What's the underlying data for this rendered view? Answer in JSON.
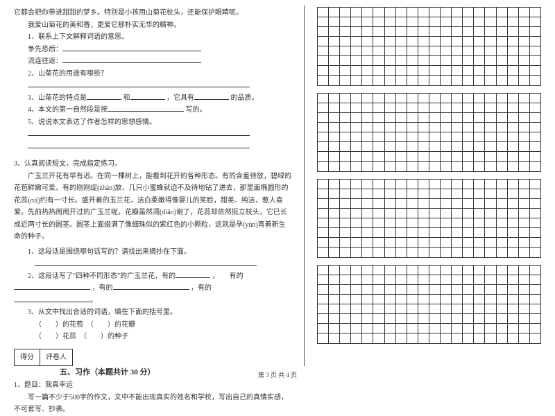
{
  "left": {
    "p1": "它都会把你带进甜甜的梦乡。特别是小孩用山菊花枕头，还能保护眼睛呢。",
    "p2": "我爱山菊花的美和香，更爱它那朴实无华的精神。",
    "q1": "1、联系上下文解释词语的意思。",
    "q1a": "争先恐后：",
    "q1b": "流连往返：",
    "q2": "2、山菊花的用途有哪些？",
    "q3a": "3、山菊花的特点是",
    "q3b": "和",
    "q3c": "，它具有",
    "q3d": "的品质。",
    "q4a": "4、本文的第一自然段是按",
    "q4b": "写的。",
    "q5": "5、说说本文表达了作者怎样的思想感情。",
    "s3title": "3、认真阅读短文，完成指定练习。",
    "s3p1": "广玉兰开花有早有迟。在同一棵树上，能看到花开的各种形态。有的含羞待放，碧绿的花苞鲜嫩可爱。有的刚刚绽(zhàn)放，几只小蜜蜂就迫不及待地钻了进去，那里面椭圆形的花蕊(ruǐ)约有一寸长。盛开着的玉兰花，洁白柔嫩得像婴儿的笑脸，甜美、纯洁，惹人喜爱。先前热热闹闹开过的广玉兰呢，花瓣虽然凋(diāo)谢了，花蕊却依然挺立枝头，它已长成近两寸长的圆茎。圆茎上面缀满了像细珠似的紫红色的小颗粒，这就是孕(yùn)育着新生命的种子。",
    "s3q1": "1、这段话是围绕哪句话写的？请找出来摘抄在下面。",
    "s3q2a": "2、这段话写了\"四种不同形态\"的广玉兰花，有的",
    "s3q2b": "，　　有的",
    "s3q2c": "，有的",
    "s3q2d": "，有的",
    "s3q2e": "。",
    "s3q3": "3、从文中找出合适的词语，填在下面的括号里。",
    "s3q3a": "（　　）的花苞　（　　）的花瓣",
    "s3q3b": "（　　）花蕊　（　　）的种子",
    "score1": "得分",
    "score2": "评卷人",
    "sec5": "五、习作（本题共计 30 分）",
    "t1": "1、题目：我真幸运",
    "t2": "写一篇不少于500字的作文，文中不能出现真实的姓名和学校，写出自己的真情实感，不可套写、抄袭。"
  },
  "grid": {
    "cols": 20,
    "blocks": [
      8,
      8,
      8,
      8
    ],
    "cell_border": "#333333"
  },
  "footer": "第 3 页 共 4 页"
}
